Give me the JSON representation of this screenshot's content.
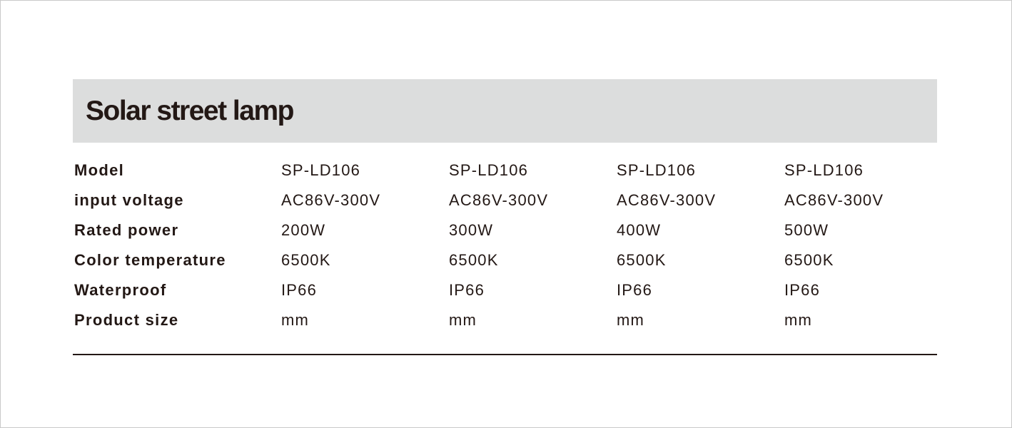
{
  "title": "Solar street lamp",
  "rows": [
    {
      "label": "Model",
      "values": [
        "SP-LD106",
        "SP-LD106",
        "SP-LD106",
        "SP-LD106"
      ]
    },
    {
      "label": "input voltage",
      "values": [
        "AC86V-300V",
        "AC86V-300V",
        "AC86V-300V",
        "AC86V-300V"
      ]
    },
    {
      "label": "Rated power",
      "values": [
        "200W",
        "300W",
        "400W",
        "500W"
      ]
    },
    {
      "label": "Color temperature",
      "values": [
        "6500K",
        "6500K",
        "6500K",
        "6500K"
      ]
    },
    {
      "label": "Waterproof",
      "values": [
        "IP66",
        "IP66",
        "IP66",
        "IP66"
      ]
    },
    {
      "label": "Product size",
      "values": [
        "mm",
        "mm",
        "mm",
        "mm"
      ]
    }
  ],
  "colors": {
    "text": "#231815",
    "header_band": "#dcdddd"
  }
}
